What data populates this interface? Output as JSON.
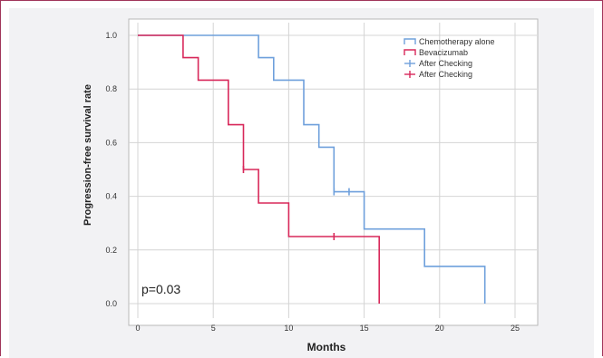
{
  "chart_data": {
    "type": "line",
    "step": true,
    "xlabel": "Months",
    "ylabel": "Progression-free survival rate",
    "xlim": [
      0,
      25
    ],
    "ylim": [
      0.0,
      1.0
    ],
    "x_ticks": [
      "0",
      "5",
      "10",
      "15",
      "20",
      "25"
    ],
    "y_ticks": [
      "0.0",
      "0.2",
      "0.4",
      "0.6",
      "0.8",
      "1.0"
    ],
    "grid": true,
    "legend_position": "top-right",
    "annotation": "p=0.03",
    "series": [
      {
        "name": "Chemotherapy alone",
        "color": "#6fa0dc",
        "points": [
          [
            0,
            1.0
          ],
          [
            8,
            1.0
          ],
          [
            8,
            0.917
          ],
          [
            9,
            0.917
          ],
          [
            9,
            0.833
          ],
          [
            11,
            0.833
          ],
          [
            11,
            0.667
          ],
          [
            12,
            0.667
          ],
          [
            12,
            0.583
          ],
          [
            13,
            0.583
          ],
          [
            13,
            0.417
          ],
          [
            15,
            0.417
          ],
          [
            15,
            0.278
          ],
          [
            19,
            0.278
          ],
          [
            19,
            0.139
          ],
          [
            23,
            0.139
          ],
          [
            23,
            0.0
          ]
        ],
        "censored": [
          [
            13,
            0.417
          ],
          [
            14,
            0.417
          ]
        ]
      },
      {
        "name": "Bevacizumab",
        "color": "#d8285a",
        "points": [
          [
            0,
            1.0
          ],
          [
            3,
            1.0
          ],
          [
            3,
            0.917
          ],
          [
            4,
            0.917
          ],
          [
            4,
            0.833
          ],
          [
            6,
            0.833
          ],
          [
            6,
            0.667
          ],
          [
            7,
            0.667
          ],
          [
            7,
            0.5
          ],
          [
            8,
            0.5
          ],
          [
            8,
            0.375
          ],
          [
            10,
            0.375
          ],
          [
            10,
            0.25
          ],
          [
            16,
            0.25
          ],
          [
            16,
            0.0
          ]
        ],
        "censored": [
          [
            7,
            0.5
          ],
          [
            13,
            0.25
          ]
        ]
      }
    ],
    "legend": [
      {
        "label": "Chemotherapy alone",
        "color": "#6fa0dc",
        "marker": "step"
      },
      {
        "label": "Bevacizumab",
        "color": "#d8285a",
        "marker": "step"
      },
      {
        "label": "After Checking",
        "color": "#6fa0dc",
        "marker": "cross"
      },
      {
        "label": "After Checking",
        "color": "#d8285a",
        "marker": "cross"
      }
    ]
  }
}
